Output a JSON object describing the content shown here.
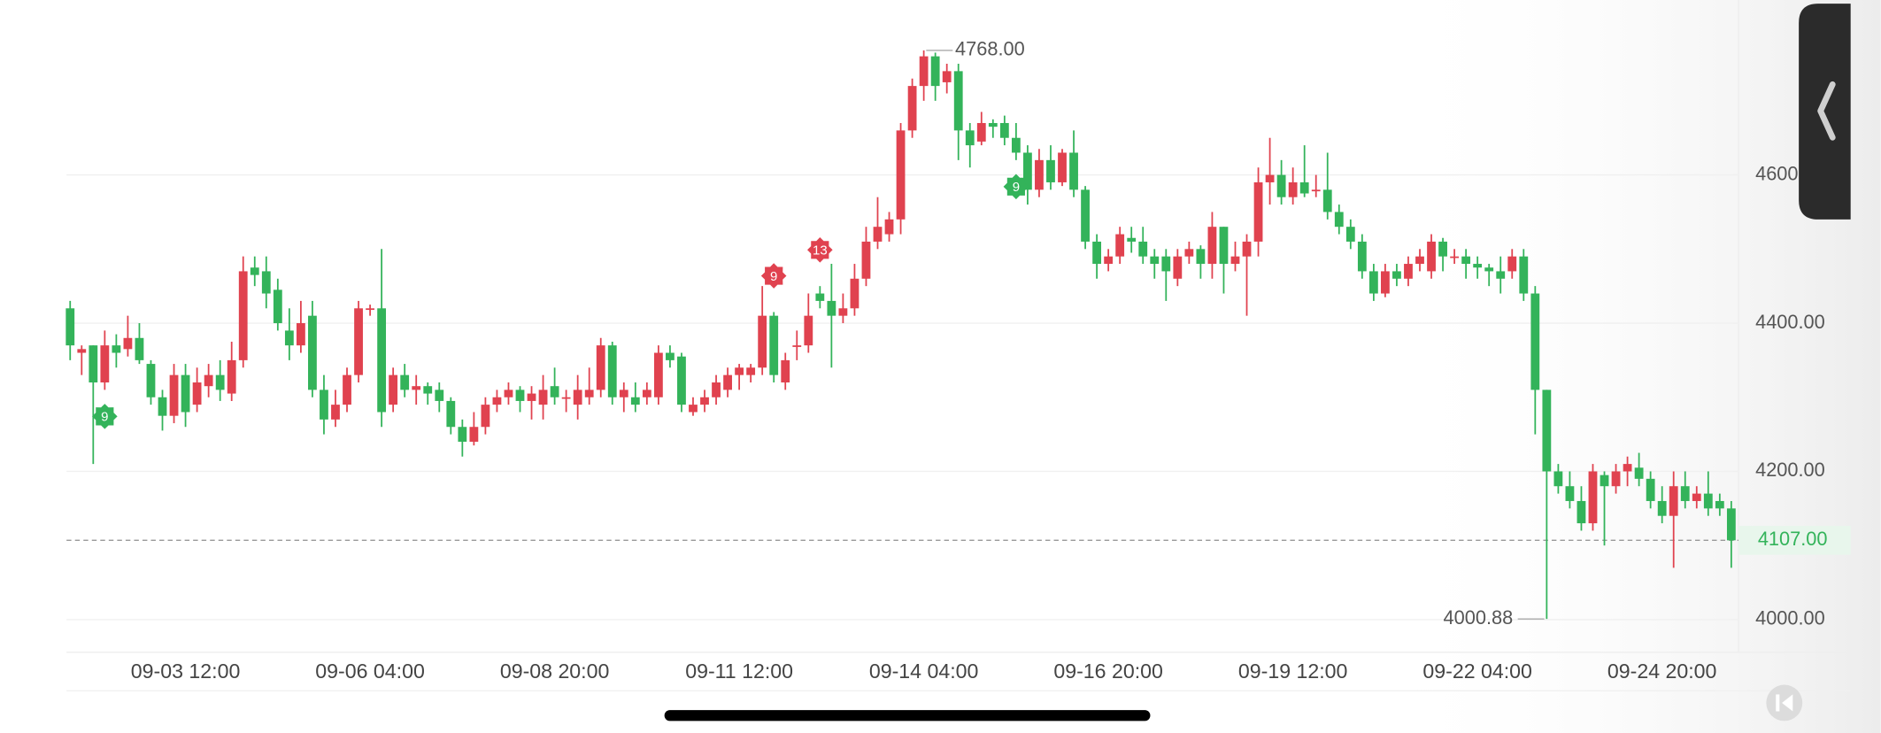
{
  "chart_data": {
    "type": "candlestick",
    "up_color": "#e0424f",
    "down_color": "#33b35a",
    "ylim": [
      3956,
      4836
    ],
    "yticks": [
      {
        "value": 4000,
        "label": "4000.00"
      },
      {
        "value": 4200,
        "label": "4200.00"
      },
      {
        "value": 4400,
        "label": "4400.00"
      },
      {
        "value": 4600,
        "label": "4600.00"
      }
    ],
    "grid": true,
    "categories": [
      null,
      null,
      null,
      null,
      null,
      null,
      null,
      null,
      null,
      null,
      "09-03 12:00",
      null,
      null,
      null,
      null,
      null,
      null,
      null,
      null,
      null,
      null,
      null,
      null,
      null,
      null,
      null,
      "09-06 04:00",
      null,
      null,
      null,
      null,
      null,
      null,
      null,
      null,
      null,
      null,
      null,
      null,
      null,
      null,
      null,
      "09-08 20:00",
      null,
      null,
      null,
      null,
      null,
      null,
      null,
      null,
      null,
      null,
      null,
      null,
      null,
      null,
      null,
      "09-11 12:00",
      null,
      null,
      null,
      null,
      null,
      null,
      null,
      null,
      null,
      null,
      null,
      null,
      null,
      null,
      null,
      "09-14 04:00",
      null,
      null,
      null,
      null,
      null,
      null,
      null,
      null,
      null,
      null,
      null,
      null,
      null,
      null,
      null,
      "09-16 20:00",
      null,
      null,
      null,
      null,
      null,
      null,
      null,
      null,
      null,
      null,
      null,
      null,
      null,
      null,
      null,
      "09-19 12:00",
      null,
      null,
      null,
      null,
      null,
      null,
      null,
      null,
      null,
      null,
      null,
      null,
      null,
      null,
      null,
      "09-22 04:00",
      null,
      null,
      null,
      null,
      null,
      null,
      null,
      null,
      null,
      null,
      null,
      null,
      null,
      null,
      null,
      "09-24 20:00",
      null,
      null,
      null,
      null,
      null,
      null
    ],
    "open": [
      4420,
      4360,
      4370,
      4320,
      4370,
      4365,
      4380,
      4345,
      4300,
      4275,
      4330,
      4290,
      4315,
      4330,
      4305,
      4350,
      4475,
      4470,
      4445,
      4390,
      4370,
      4410,
      4310,
      4270,
      4290,
      4330,
      4420,
      4420,
      4290,
      4330,
      4310,
      4315,
      4310,
      4295,
      4260,
      4240,
      4260,
      4290,
      4300,
      4310,
      4295,
      4290,
      4315,
      4300,
      4290,
      4300,
      4310,
      4370,
      4300,
      4300,
      4300,
      4300,
      4360,
      4355,
      4280,
      4290,
      4300,
      4310,
      4330,
      4330,
      4340,
      4410,
      4320,
      4370,
      4370,
      4440,
      4430,
      4410,
      4420,
      4460,
      4510,
      4520,
      4540,
      4660,
      4720,
      4760,
      4725,
      4740,
      4660,
      4645,
      4670,
      4670,
      4650,
      4630,
      4580,
      4620,
      4590,
      4630,
      4580,
      4510,
      4480,
      4490,
      4515,
      4510,
      4490,
      4490,
      4460,
      4490,
      4500,
      4480,
      4530,
      4480,
      4490,
      4510,
      4590,
      4600,
      4570,
      4590,
      4580,
      4580,
      4550,
      4530,
      4510,
      4470,
      4440,
      4470,
      4460,
      4480,
      4470,
      4510,
      4490,
      4490,
      4480,
      4475,
      4470,
      4470,
      4490,
      4440,
      4310,
      4200,
      4180,
      4160,
      4130,
      4195,
      4180,
      4200,
      4205,
      4190,
      4160,
      4140,
      4180,
      4160,
      4170,
      4160,
      4150
    ],
    "high": [
      4430,
      4370,
      4370,
      4390,
      4385,
      4410,
      4400,
      4350,
      4310,
      4345,
      4345,
      4340,
      4345,
      4350,
      4375,
      4490,
      4490,
      4490,
      4460,
      4420,
      4430,
      4430,
      4330,
      4310,
      4340,
      4430,
      4425,
      4500,
      4340,
      4345,
      4330,
      4320,
      4320,
      4300,
      4270,
      4280,
      4300,
      4310,
      4320,
      4315,
      4315,
      4330,
      4340,
      4310,
      4330,
      4340,
      4380,
      4375,
      4320,
      4320,
      4320,
      4370,
      4370,
      4360,
      4300,
      4310,
      4330,
      4340,
      4345,
      4345,
      4450,
      4415,
      4360,
      4390,
      4440,
      4450,
      4480,
      4440,
      4480,
      4530,
      4570,
      4550,
      4670,
      4730,
      4768,
      4765,
      4750,
      4750,
      4670,
      4685,
      4675,
      4680,
      4670,
      4640,
      4635,
      4640,
      4635,
      4660,
      4585,
      4520,
      4500,
      4530,
      4530,
      4530,
      4500,
      4500,
      4500,
      4510,
      4505,
      4550,
      4530,
      4510,
      4520,
      4610,
      4650,
      4620,
      4610,
      4640,
      4600,
      4630,
      4560,
      4540,
      4520,
      4480,
      4480,
      4480,
      4490,
      4500,
      4520,
      4515,
      4500,
      4500,
      4490,
      4480,
      4490,
      4500,
      4500,
      4450,
      4310,
      4210,
      4200,
      4180,
      4210,
      4200,
      4210,
      4220,
      4225,
      4200,
      4180,
      4200,
      4200,
      4180,
      4200,
      4170,
      4160
    ],
    "low": [
      4350,
      4330,
      4210,
      4310,
      4340,
      4355,
      4345,
      4290,
      4255,
      4265,
      4260,
      4280,
      4300,
      4295,
      4295,
      4340,
      4450,
      4420,
      4390,
      4350,
      4360,
      4300,
      4250,
      4260,
      4280,
      4320,
      4410,
      4260,
      4280,
      4300,
      4290,
      4290,
      4280,
      4250,
      4220,
      4235,
      4250,
      4280,
      4290,
      4280,
      4270,
      4270,
      4290,
      4280,
      4270,
      4290,
      4300,
      4290,
      4280,
      4280,
      4290,
      4290,
      4340,
      4280,
      4275,
      4280,
      4290,
      4300,
      4310,
      4320,
      4330,
      4320,
      4310,
      4350,
      4360,
      4420,
      4340,
      4400,
      4410,
      4450,
      4500,
      4510,
      4520,
      4650,
      4700,
      4700,
      4710,
      4620,
      4610,
      4640,
      4650,
      4640,
      4620,
      4560,
      4570,
      4580,
      4585,
      4570,
      4500,
      4460,
      4470,
      4480,
      4495,
      4480,
      4460,
      4430,
      4450,
      4480,
      4460,
      4460,
      4440,
      4470,
      4410,
      4490,
      4560,
      4560,
      4560,
      4570,
      4570,
      4540,
      4520,
      4500,
      4460,
      4430,
      4435,
      4450,
      4450,
      4470,
      4460,
      4470,
      4480,
      4460,
      4460,
      4450,
      4440,
      4460,
      4430,
      4250,
      4000.88,
      4170,
      4150,
      4120,
      4120,
      4100,
      4170,
      4180,
      4180,
      4150,
      4130,
      4070,
      4150,
      4150,
      4140,
      4140,
      4070
    ],
    "close": [
      4370,
      4365,
      4320,
      4370,
      4360,
      4380,
      4350,
      4300,
      4275,
      4330,
      4280,
      4320,
      4330,
      4310,
      4350,
      4470,
      4465,
      4440,
      4400,
      4370,
      4400,
      4310,
      4270,
      4290,
      4330,
      4420,
      4420,
      4280,
      4330,
      4310,
      4315,
      4305,
      4295,
      4260,
      4240,
      4260,
      4290,
      4300,
      4310,
      4295,
      4305,
      4310,
      4300,
      4300,
      4310,
      4310,
      4370,
      4300,
      4310,
      4290,
      4310,
      4360,
      4350,
      4290,
      4290,
      4300,
      4320,
      4330,
      4340,
      4340,
      4410,
      4330,
      4350,
      4370,
      4410,
      4430,
      4410,
      4420,
      4460,
      4510,
      4530,
      4540,
      4660,
      4720,
      4760,
      4720,
      4740,
      4660,
      4640,
      4670,
      4665,
      4650,
      4630,
      4580,
      4620,
      4590,
      4630,
      4580,
      4510,
      4480,
      4490,
      4520,
      4510,
      4490,
      4480,
      4470,
      4490,
      4500,
      4480,
      4530,
      4480,
      4490,
      4510,
      4590,
      4600,
      4570,
      4590,
      4575,
      4580,
      4550,
      4530,
      4510,
      4470,
      4440,
      4470,
      4460,
      4480,
      4490,
      4510,
      4490,
      4490,
      4480,
      4475,
      4470,
      4460,
      4490,
      4440,
      4310,
      4200,
      4180,
      4160,
      4130,
      4200,
      4180,
      4200,
      4210,
      4190,
      4160,
      4140,
      4180,
      4160,
      4170,
      4150,
      4150,
      4107
    ],
    "max_label": {
      "value": 4768,
      "label": "4768.00"
    },
    "min_label": {
      "value": 4000.88,
      "label": "4000.88"
    },
    "last_price": {
      "value": 4107,
      "label": "4107.00",
      "color": "#33b35a"
    },
    "signals": [
      {
        "candle": 3,
        "label": "9",
        "side": "below",
        "color": "#33b35a"
      },
      {
        "candle": 61,
        "label": "9",
        "side": "above",
        "color": "#e0424f"
      },
      {
        "candle": 65,
        "label": "13",
        "side": "above",
        "color": "#e0424f"
      },
      {
        "candle": 82,
        "label": "9",
        "side": "below",
        "color": "#33b35a"
      }
    ]
  }
}
